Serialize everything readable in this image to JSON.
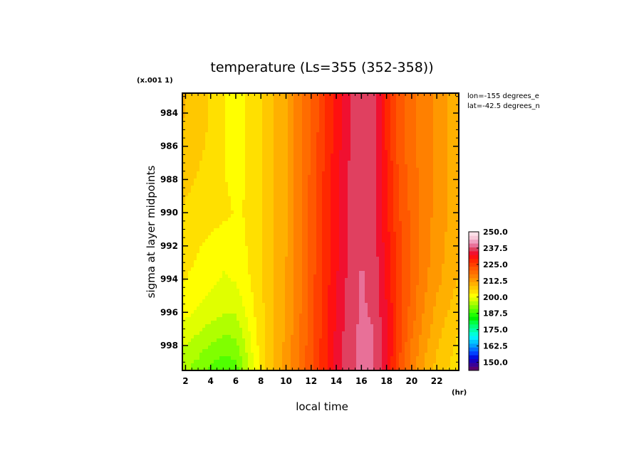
{
  "chart_data": {
    "type": "heatmap",
    "title": "temperature (Ls=355 (352-358))",
    "xlabel": "local time",
    "ylabel": "sigma at layer midpoints",
    "x_unit": "(hr)",
    "y_scale_note": "(x.001 1)",
    "annotations": [
      "lon=-155 degrees_e",
      "lat=-42.5 degrees_n"
    ],
    "xlim": [
      1.75,
      23.75
    ],
    "ylim": [
      999.5,
      982.8
    ],
    "x_ticks": [
      2,
      4,
      6,
      8,
      10,
      12,
      14,
      16,
      18,
      20,
      22
    ],
    "x_tick_labels": [
      "2",
      "4",
      "6",
      "8",
      "10",
      "12",
      "14",
      "16",
      "18",
      "20",
      "22"
    ],
    "y_ticks": [
      984,
      986,
      988,
      990,
      992,
      994,
      996,
      998
    ],
    "y_tick_labels": [
      "984",
      "986",
      "988",
      "990",
      "992",
      "994",
      "996",
      "998"
    ],
    "x": [
      1.75,
      3,
      4,
      5,
      6,
      7,
      8,
      9,
      10,
      11,
      12,
      13,
      14,
      15,
      16,
      17,
      18,
      19,
      20,
      21,
      22,
      23,
      23.75
    ],
    "y": [
      983,
      984,
      986,
      988,
      990,
      992,
      994,
      996,
      998,
      999.5
    ],
    "z": [
      [
        199,
        198,
        196,
        194,
        193,
        194,
        196,
        198.5,
        201,
        205,
        209,
        213,
        217,
        221,
        223,
        222,
        216,
        210,
        207,
        205,
        203,
        201,
        200
      ],
      [
        199,
        198,
        196,
        194,
        193,
        194,
        196,
        198.5,
        201,
        205,
        209,
        213,
        217,
        221,
        223,
        222,
        216,
        210,
        207,
        205,
        203,
        201,
        200
      ],
      [
        198,
        197,
        195.5,
        194,
        193,
        194,
        196,
        198.5,
        201,
        205,
        209,
        213.5,
        217.5,
        221,
        223,
        222,
        216,
        210,
        207,
        205,
        203,
        201,
        200
      ],
      [
        197,
        196,
        195,
        194,
        193,
        194,
        196,
        198.5,
        201,
        205,
        209.5,
        214,
        218,
        221.5,
        223.5,
        222,
        216.5,
        211,
        207.5,
        205,
        203,
        201,
        200
      ],
      [
        196,
        195.5,
        195,
        194.5,
        193.5,
        194,
        196,
        198.5,
        201,
        205,
        209.5,
        214,
        218,
        221.5,
        223.5,
        222,
        217,
        211.5,
        208,
        205,
        203,
        201,
        200
      ],
      [
        195,
        194,
        193,
        192,
        192.5,
        194,
        196,
        198.5,
        201,
        205,
        209.5,
        214,
        218,
        221.5,
        223.5,
        222.5,
        217.5,
        212,
        208.5,
        205,
        202.5,
        200.5,
        199
      ],
      [
        194,
        193,
        192,
        191,
        191.5,
        193.5,
        196,
        198.5,
        201.5,
        205.5,
        210,
        214.5,
        218.5,
        222,
        224,
        223,
        218,
        212.5,
        208,
        204.5,
        202,
        200,
        198.5
      ],
      [
        192,
        191,
        190,
        189,
        189,
        192,
        195.5,
        198.5,
        201.5,
        205.5,
        210,
        214.5,
        219,
        222.5,
        224,
        223.5,
        219,
        213,
        207.5,
        203.5,
        200.5,
        198.5,
        197
      ],
      [
        189,
        187.5,
        186,
        185,
        185.5,
        190,
        195,
        198.5,
        202,
        206,
        210.5,
        215,
        219.5,
        223,
        224.5,
        224,
        219.5,
        212,
        206,
        202,
        199,
        197,
        195.5
      ],
      [
        187,
        185,
        183,
        181.5,
        182.5,
        188.5,
        194.5,
        198.5,
        202,
        206,
        210.5,
        215,
        219.5,
        223,
        224.5,
        224,
        219.5,
        211.5,
        205,
        201,
        198,
        196,
        194.5
      ]
    ],
    "colorbar": {
      "min": 143.75,
      "max": 250,
      "step": 2.5,
      "tick_values": [
        150,
        162.5,
        175,
        187.5,
        200,
        212.5,
        225,
        237.5,
        250
      ],
      "tick_labels": [
        "150.0",
        "162.5",
        "175.0",
        "187.5",
        "200.0",
        "212.5",
        "225.0",
        "237.5",
        "250.0"
      ],
      "colors": [
        "#5a006e",
        "#3a0096",
        "#1a00be",
        "#0010e0",
        "#0040ff",
        "#0070ff",
        "#00a0ff",
        "#00c8ff",
        "#00f0ff",
        "#00ffd8",
        "#00ffa8",
        "#00ff78",
        "#00ff40",
        "#00f000",
        "#20ff00",
        "#50ff00",
        "#80ff00",
        "#b0ff00",
        "#e0ff00",
        "#ffff00",
        "#ffe000",
        "#ffc800",
        "#ffb000",
        "#ff9800",
        "#ff8000",
        "#ff6c00",
        "#ff5800",
        "#ff4000",
        "#ff2800",
        "#ff1010",
        "#f01030",
        "#e04060",
        "#e87098",
        "#f0a0c0",
        "#f8c8d8",
        "#fde0e8"
      ]
    }
  }
}
